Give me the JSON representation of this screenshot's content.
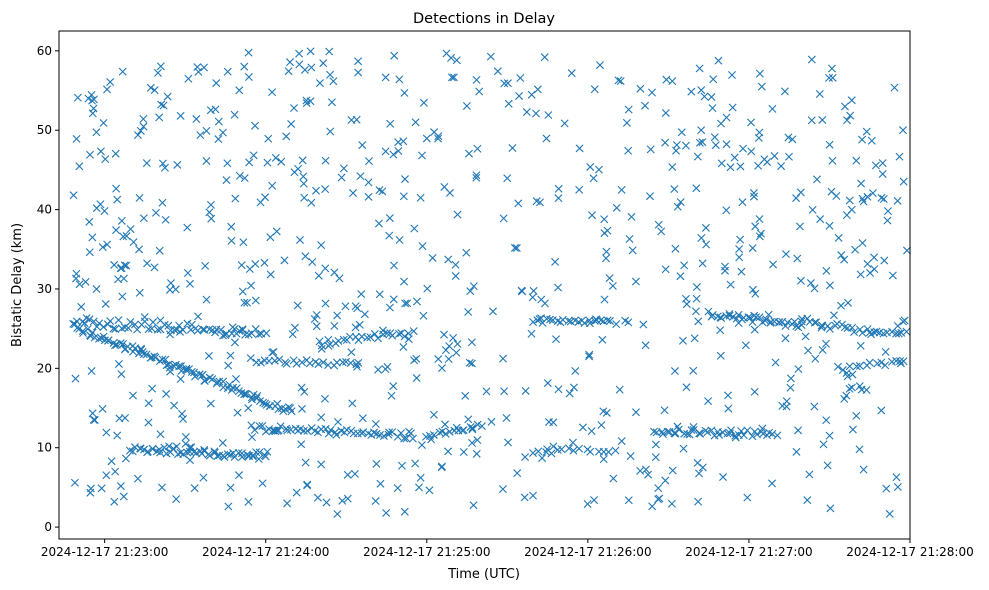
{
  "chart_data": {
    "type": "scatter",
    "title": "Detections in Delay",
    "xlabel": "Time (UTC)",
    "ylabel": "Bistatic Delay (km)",
    "marker": "x",
    "marker_color": "#1f77b4",
    "grid": false,
    "legend": "none",
    "xlim": [
      "2024-12-17 21:22:43",
      "2024-12-17 21:28:00"
    ],
    "ylim": [
      -1.5,
      62.5
    ],
    "x_ticks": [
      "2024-12-17 21:23:00",
      "2024-12-17 21:24:00",
      "2024-12-17 21:25:00",
      "2024-12-17 21:26:00",
      "2024-12-17 21:27:00",
      "2024-12-17 21:28:00"
    ],
    "y_ticks": [
      0,
      10,
      20,
      30,
      40,
      50,
      60
    ],
    "tracks": [
      {
        "description": "descending band",
        "start": [
          "2024-12-17 21:22:48",
          25.3
        ],
        "end": [
          "2024-12-17 21:24:10",
          14.5
        ],
        "count": 95,
        "jitter": 0.4
      },
      {
        "description": "band near 25 km",
        "start": [
          "2024-12-17 21:22:50",
          25.8
        ],
        "end": [
          "2024-12-17 21:24:00",
          24.5
        ],
        "count": 60,
        "jitter": 0.6
      },
      {
        "description": "band near 10 km",
        "start": [
          "2024-12-17 21:23:10",
          10.0
        ],
        "end": [
          "2024-12-17 21:24:00",
          9.0
        ],
        "count": 55,
        "jitter": 0.5
      },
      {
        "description": "band near 12 km",
        "start": [
          "2024-12-17 21:23:55",
          12.5
        ],
        "end": [
          "2024-12-17 21:24:55",
          11.5
        ],
        "count": 50,
        "jitter": 0.4
      },
      {
        "description": "band near 21 km",
        "start": [
          "2024-12-17 21:23:55",
          21.0
        ],
        "end": [
          "2024-12-17 21:24:35",
          20.5
        ],
        "count": 25,
        "jitter": 0.3
      },
      {
        "description": "band near 24 km",
        "start": [
          "2024-12-17 21:24:20",
          23.2
        ],
        "end": [
          "2024-12-17 21:24:55",
          24.5
        ],
        "count": 25,
        "jitter": 0.4
      },
      {
        "description": "band near 12 km",
        "start": [
          "2024-12-17 21:25:00",
          11.5
        ],
        "end": [
          "2024-12-17 21:25:20",
          12.8
        ],
        "count": 15,
        "jitter": 0.3
      },
      {
        "description": "band near 26 km",
        "start": [
          "2024-12-17 21:25:40",
          26.0
        ],
        "end": [
          "2024-12-17 21:26:10",
          25.8
        ],
        "count": 25,
        "jitter": 0.3
      },
      {
        "description": "band near 10 km",
        "start": [
          "2024-12-17 21:25:40",
          9.5
        ],
        "end": [
          "2024-12-17 21:26:10",
          9.8
        ],
        "count": 15,
        "jitter": 0.4
      },
      {
        "description": "band near 12 km",
        "start": [
          "2024-12-17 21:26:25",
          12.0
        ],
        "end": [
          "2024-12-17 21:27:10",
          11.8
        ],
        "count": 40,
        "jitter": 0.4
      },
      {
        "description": "band near 26 km",
        "start": [
          "2024-12-17 21:26:45",
          26.8
        ],
        "end": [
          "2024-12-17 21:27:20",
          25.5
        ],
        "count": 35,
        "jitter": 0.4
      },
      {
        "description": "band near 26 km",
        "start": [
          "2024-12-17 21:27:20",
          26.0
        ],
        "end": [
          "2024-12-17 21:27:45",
          24.5
        ],
        "count": 20,
        "jitter": 0.4
      },
      {
        "description": "band near 24.5 km",
        "start": [
          "2024-12-17 21:27:45",
          24.5
        ],
        "end": [
          "2024-12-17 21:28:00",
          24.5
        ],
        "count": 12,
        "jitter": 0.2
      },
      {
        "description": "band near 20.5 km",
        "start": [
          "2024-12-17 21:27:40",
          20.5
        ],
        "end": [
          "2024-12-17 21:28:00",
          20.8
        ],
        "count": 12,
        "jitter": 0.3
      }
    ],
    "scatter_regions": [
      {
        "x_range": [
          "2024-12-17 21:22:48",
          "2024-12-17 21:25:20"
        ],
        "y_range": [
          1.5,
          60
        ],
        "count": 420
      },
      {
        "x_range": [
          "2024-12-17 21:25:20",
          "2024-12-17 21:26:20"
        ],
        "y_range": [
          1.5,
          60
        ],
        "count": 110
      },
      {
        "x_range": [
          "2024-12-17 21:26:20",
          "2024-12-17 21:28:00"
        ],
        "y_range": [
          1.5,
          59
        ],
        "count": 260
      }
    ],
    "sampled": true,
    "random_seed": 20241217
  }
}
